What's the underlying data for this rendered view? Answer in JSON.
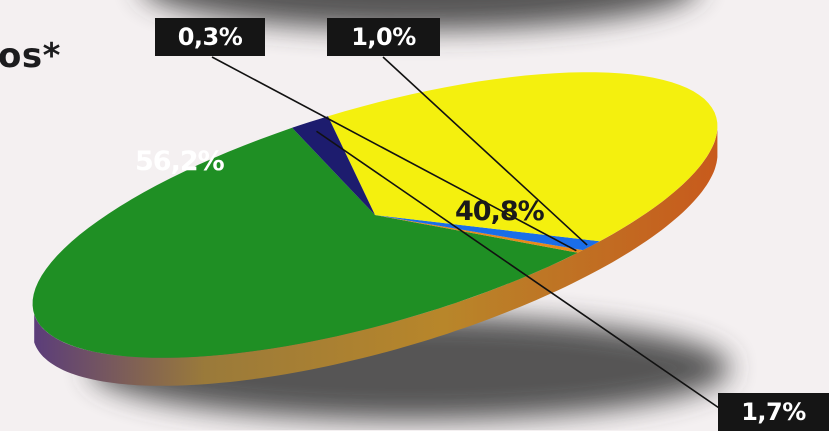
{
  "header": {
    "title_fragment": "os*"
  },
  "chart_data": {
    "type": "pie",
    "style": "3d-exploded-perspective",
    "legend": "none",
    "slices": [
      {
        "label": "56,2%",
        "value": 56.2,
        "color": "#1f8f24"
      },
      {
        "label": "0,3%",
        "value": 0.3,
        "color": "#e88a1a"
      },
      {
        "label": "1,0%",
        "value": 1.0,
        "color": "#1a6ee8"
      },
      {
        "label": "40,8%",
        "value": 40.8,
        "color": "#f4f00e"
      },
      {
        "label": "1,7%",
        "value": 1.7,
        "color": "#1d1c6e"
      }
    ]
  }
}
